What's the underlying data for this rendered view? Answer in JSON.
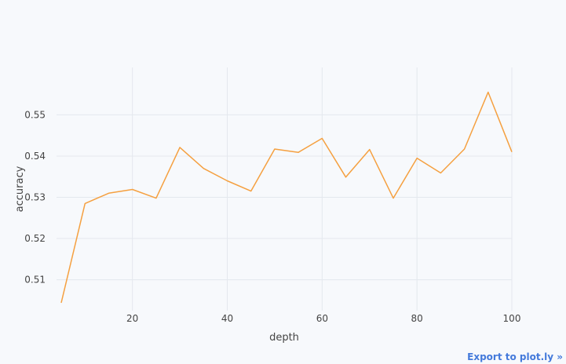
{
  "export_link": {
    "label": "Export to plot.ly »"
  },
  "colors": {
    "line": "#f5a040",
    "grid": "#e4e8ee",
    "background": "#f7f9fc"
  },
  "chart_data": {
    "type": "line",
    "xlabel": "depth",
    "ylabel": "accuracy",
    "xlim": [
      4,
      100
    ],
    "ylim": [
      0.5025,
      0.5615
    ],
    "x_ticks": [
      20,
      40,
      60,
      80,
      100
    ],
    "y_ticks": [
      0.51,
      0.52,
      0.53,
      0.54,
      0.55
    ],
    "x_tick_labels": [
      "20",
      "40",
      "60",
      "80",
      "100"
    ],
    "y_tick_labels": [
      "0.51",
      "0.52",
      "0.53",
      "0.54",
      "0.55"
    ],
    "grid": true,
    "series": [
      {
        "x": [
          5,
          10,
          15,
          20,
          25,
          30,
          35,
          40,
          45,
          50,
          55,
          60,
          65,
          70,
          75,
          80,
          85,
          90,
          95,
          100
        ],
        "y": [
          0.5044,
          0.5285,
          0.531,
          0.5319,
          0.5298,
          0.5421,
          0.537,
          0.534,
          0.5315,
          0.5417,
          0.5409,
          0.5443,
          0.5349,
          0.5416,
          0.5298,
          0.5395,
          0.5359,
          0.5417,
          0.5555,
          0.541
        ]
      }
    ]
  }
}
